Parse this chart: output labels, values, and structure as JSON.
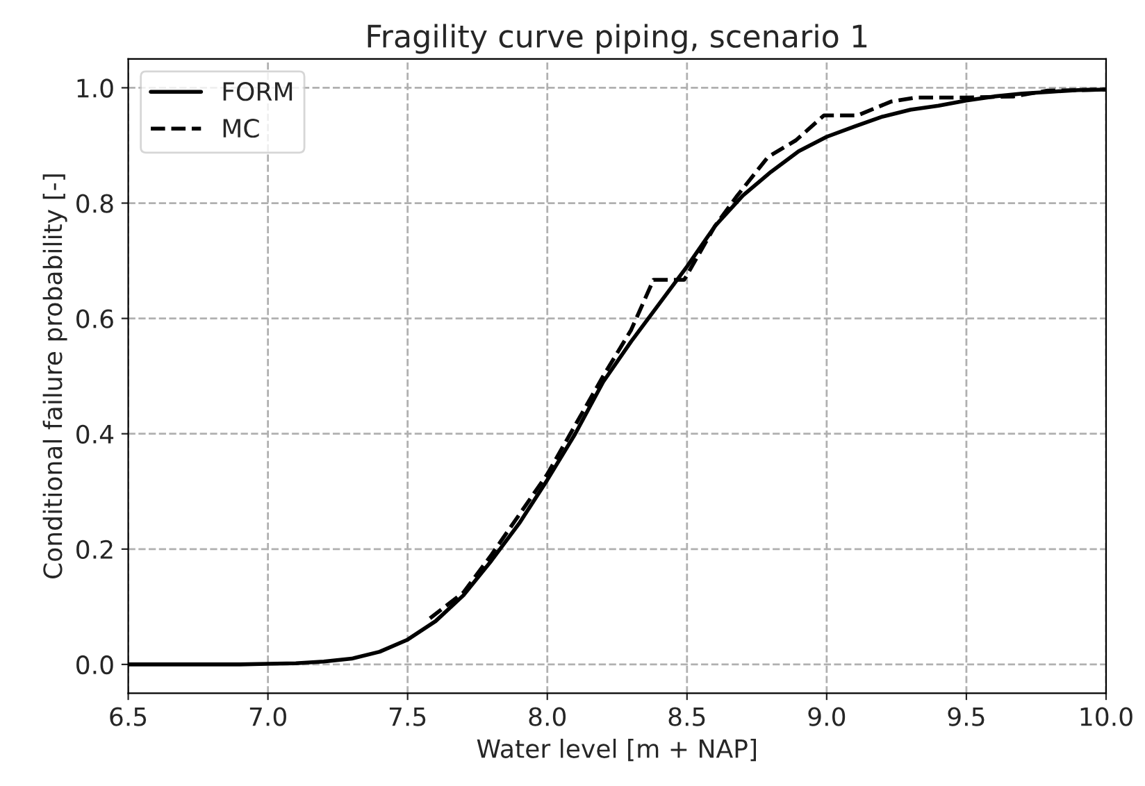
{
  "chart_data": {
    "type": "line",
    "title": "Fragility curve piping, scenario 1",
    "xlabel": "Water level [m + NAP]",
    "ylabel": "Conditional failure probability [-]",
    "series": [
      {
        "name": "FORM",
        "color": "#000000",
        "line_style": "solid",
        "x": [
          6.5,
          6.6,
          6.7,
          6.8,
          6.9,
          7.0,
          7.1,
          7.2,
          7.3,
          7.4,
          7.5,
          7.6,
          7.7,
          7.8,
          7.9,
          8.0,
          8.1,
          8.2,
          8.3,
          8.4,
          8.5,
          8.6,
          8.7,
          8.8,
          8.9,
          9.0,
          9.1,
          9.2,
          9.3,
          9.4,
          9.5,
          9.6,
          9.7,
          9.8,
          9.9,
          10.0
        ],
        "values": [
          0,
          0,
          0,
          0,
          0,
          0.001,
          0.002,
          0.005,
          0.01,
          0.022,
          0.043,
          0.075,
          0.12,
          0.18,
          0.245,
          0.32,
          0.4,
          0.49,
          0.56,
          0.625,
          0.69,
          0.76,
          0.813,
          0.854,
          0.89,
          0.915,
          0.933,
          0.95,
          0.962,
          0.969,
          0.978,
          0.985,
          0.99,
          0.993,
          0.996,
          0.997
        ]
      },
      {
        "name": "MC",
        "color": "#000000",
        "line_style": "dashed",
        "x": [
          7.58,
          7.7,
          7.8,
          7.9,
          8.0,
          8.1,
          8.2,
          8.3,
          8.38,
          8.49,
          8.6,
          8.68,
          8.79,
          8.89,
          8.99,
          9.11,
          9.23,
          9.32,
          9.5,
          9.67,
          9.79,
          10.0
        ],
        "values": [
          0.08,
          0.125,
          0.19,
          0.26,
          0.33,
          0.415,
          0.5,
          0.58,
          0.667,
          0.667,
          0.76,
          0.813,
          0.88,
          0.909,
          0.952,
          0.952,
          0.976,
          0.983,
          0.983,
          0.985,
          0.995,
          0.997
        ]
      }
    ],
    "xlim": [
      6.5,
      10.0
    ],
    "ylim": [
      -0.05,
      1.05
    ],
    "xticks": [
      {
        "value": 6.5,
        "label": "6.5"
      },
      {
        "value": 7.0,
        "label": "7.0"
      },
      {
        "value": 7.5,
        "label": "7.5"
      },
      {
        "value": 8.0,
        "label": "8.0"
      },
      {
        "value": 8.5,
        "label": "8.5"
      },
      {
        "value": 9.0,
        "label": "9.0"
      },
      {
        "value": 9.5,
        "label": "9.5"
      },
      {
        "value": 10.0,
        "label": "10.0"
      }
    ],
    "yticks": [
      {
        "value": 0,
        "label": "0.0"
      },
      {
        "value": 0.2,
        "label": "0.2"
      },
      {
        "value": 0.4,
        "label": "0.4"
      },
      {
        "value": 0.6,
        "label": "0.6"
      },
      {
        "value": 0.8,
        "label": "0.8"
      },
      {
        "value": 1.0,
        "label": "1.0"
      }
    ],
    "grid": true,
    "legend": "top left"
  }
}
